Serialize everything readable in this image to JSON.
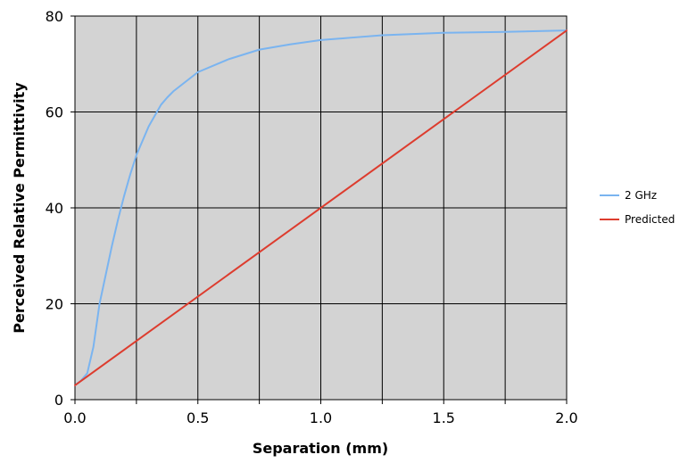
{
  "chart_data": {
    "type": "line",
    "title": "",
    "xlabel": "Separation (mm)",
    "ylabel": "Perceived Relative Permittivity",
    "xlim": [
      0,
      2
    ],
    "ylim": [
      0,
      80
    ],
    "xticks": [
      0,
      0.25,
      0.5,
      0.75,
      1,
      1.25,
      1.5,
      1.75,
      2
    ],
    "xtick_labels": [
      "0.0",
      "",
      "0.5",
      "",
      "1.0",
      "",
      "1.5",
      "",
      "2.0"
    ],
    "yticks": [
      0,
      20,
      40,
      60,
      80
    ],
    "ytick_labels": [
      "0",
      "20",
      "40",
      "60",
      "80"
    ],
    "grid": true,
    "plot_background": "#d3d3d3",
    "legend_position": "right",
    "series": [
      {
        "name": "2 GHz",
        "color": "#7ab4f0",
        "x": [
          0,
          0.025,
          0.05,
          0.075,
          0.1,
          0.125,
          0.15,
          0.175,
          0.2,
          0.225,
          0.25,
          0.3,
          0.35,
          0.375,
          0.4,
          0.5,
          0.625,
          0.75,
          0.875,
          1.0,
          1.125,
          1.25,
          1.5,
          1.75,
          2.0
        ],
        "y": [
          3,
          4,
          5.5,
          11,
          20,
          26,
          32,
          37.5,
          42.5,
          47,
          51,
          57,
          61.5,
          63,
          64.3,
          68.3,
          71,
          73,
          74.1,
          75,
          75.5,
          76,
          76.5,
          76.7,
          77
        ]
      },
      {
        "name": "Predicted",
        "color": "#dd3c2e",
        "x": [
          0,
          2
        ],
        "y": [
          3,
          77
        ]
      }
    ]
  }
}
